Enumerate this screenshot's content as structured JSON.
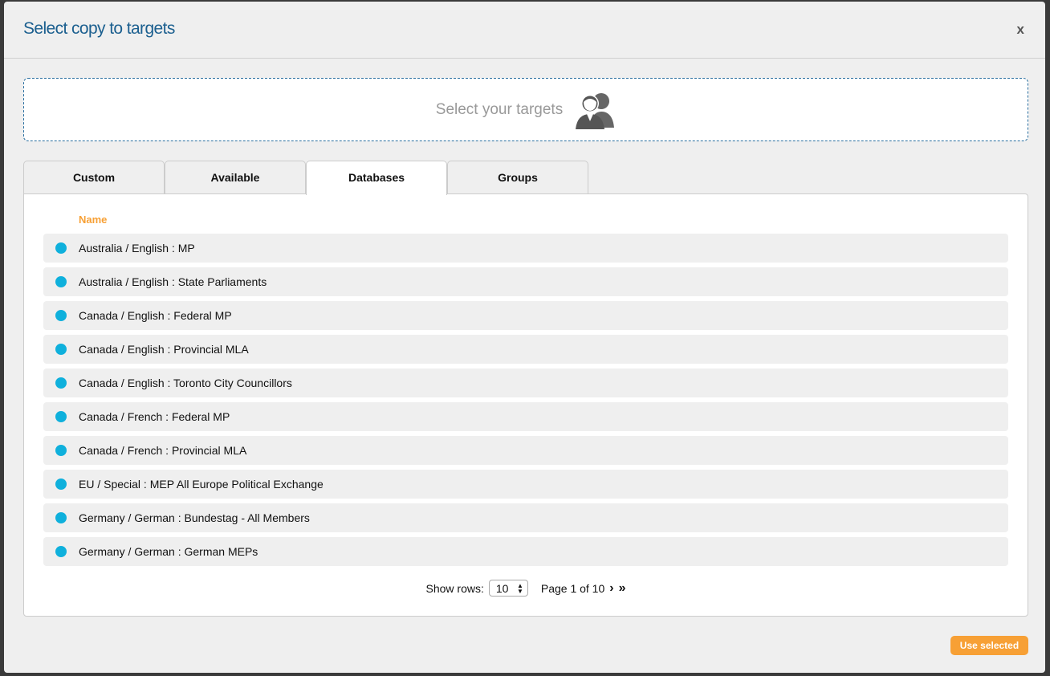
{
  "dialog": {
    "title": "Select copy to targets",
    "close_label": "x"
  },
  "dropzone": {
    "label": "Select your targets",
    "icon": "users-icon"
  },
  "tabs": [
    {
      "label": "Custom"
    },
    {
      "label": "Available"
    },
    {
      "label": "Databases",
      "active": true
    },
    {
      "label": "Groups"
    }
  ],
  "table": {
    "column_header": "Name",
    "rows": [
      "Australia / English : MP",
      "Australia / English : State Parliaments",
      "Canada / English : Federal MP",
      "Canada / English : Provincial MLA",
      "Canada / English : Toronto City Councillors",
      "Canada / French : Federal MP",
      "Canada / French : Provincial MLA",
      "EU / Special : MEP All Europe Political Exchange",
      "Germany / German : Bundestag - All Members",
      "Germany / German : German MEPs"
    ]
  },
  "pagination": {
    "show_rows_label": "Show rows:",
    "rows_value": "10",
    "page_text": "Page 1 of 10"
  },
  "footer": {
    "use_selected_label": "Use selected"
  },
  "colors": {
    "accent": "#f7a035",
    "title": "#1b5f8f",
    "dot": "#0fb0dc"
  }
}
